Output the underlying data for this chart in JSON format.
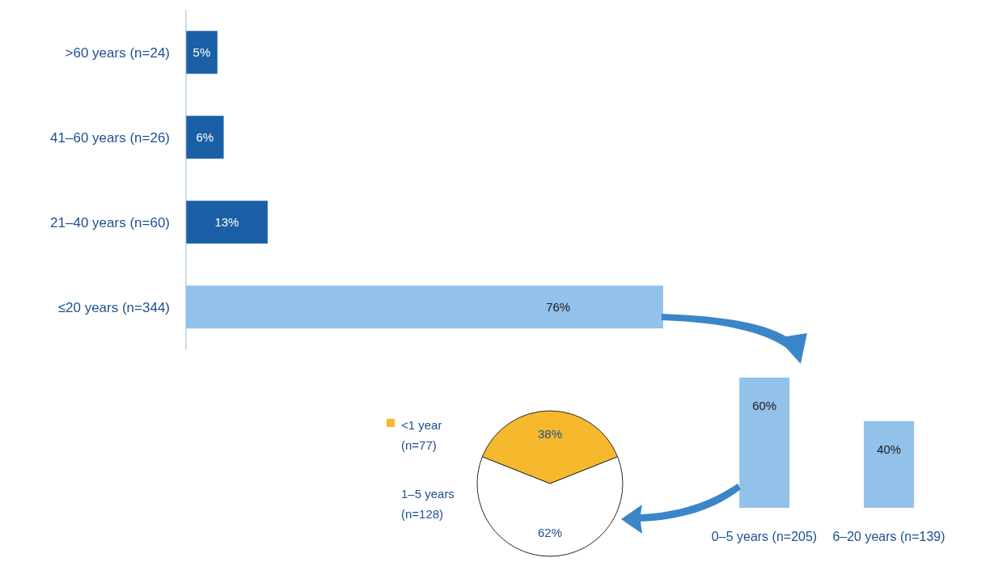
{
  "chart_data": [
    {
      "type": "bar",
      "orientation": "horizontal",
      "categories": [
        ">60 years (n=24)",
        "41–60 years (n=26)",
        "21–40 years (n=60)",
        "≤20 years (n=344)"
      ],
      "values": [
        5,
        6,
        13,
        76
      ],
      "colors": [
        "#1b5fa6",
        "#1b5fa6",
        "#1b5fa6",
        "#92c1ea"
      ],
      "value_labels": [
        "5%",
        "6%",
        "13%",
        "76%"
      ]
    },
    {
      "type": "bar",
      "categories": [
        "0–5 years (n=205)",
        "6–20 years (n=139)"
      ],
      "values": [
        60,
        40
      ],
      "colors": [
        "#92c1ea",
        "#92c1ea"
      ],
      "value_labels": [
        "60%",
        "40%"
      ]
    },
    {
      "type": "pie",
      "categories": [
        "<1 year (n=77)",
        "1–5 years (n=128)"
      ],
      "values": [
        38,
        62
      ],
      "colors": [
        "#f6b82c",
        "#ffffff"
      ],
      "value_labels": [
        "38%",
        "62%"
      ],
      "legend": "left"
    }
  ]
}
